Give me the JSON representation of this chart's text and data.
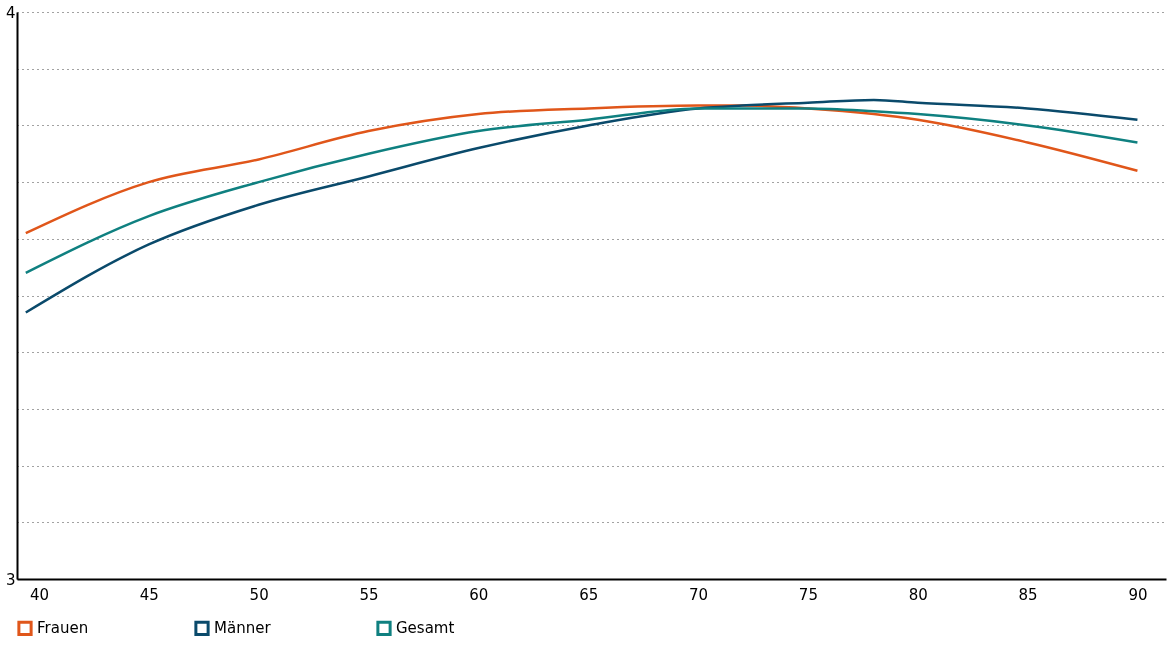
{
  "chart_data": {
    "type": "line",
    "x": [
      39.4,
      45,
      50,
      55,
      60,
      65,
      70,
      72,
      75,
      78,
      80,
      85,
      90
    ],
    "series": [
      {
        "name": "Frauen",
        "color": "#e0561a",
        "values": [
          3.61,
          3.7,
          3.74,
          3.79,
          3.82,
          3.83,
          3.835,
          3.835,
          3.83,
          3.82,
          3.81,
          3.77,
          3.72
        ]
      },
      {
        "name": "Männer",
        "color": "#0a4a6b",
        "values": [
          3.47,
          3.59,
          3.66,
          3.71,
          3.76,
          3.8,
          3.83,
          3.835,
          3.84,
          3.845,
          3.84,
          3.83,
          3.81
        ]
      },
      {
        "name": "Gesamt",
        "color": "#0f8080",
        "values": [
          3.54,
          3.64,
          3.7,
          3.75,
          3.79,
          3.81,
          3.83,
          3.83,
          3.83,
          3.825,
          3.82,
          3.8,
          3.77
        ]
      }
    ],
    "xlim": [
      39,
      91.3
    ],
    "xticks": [
      40,
      45,
      50,
      55,
      60,
      65,
      70,
      75,
      80,
      85,
      90
    ],
    "ylim": [
      3,
      4
    ],
    "yticks": [
      3,
      {
        "value": 3.1,
        "label": null
      },
      {
        "value": 3.2,
        "label": null
      },
      {
        "value": 3.3,
        "label": null
      },
      {
        "value": 3.4,
        "label": null
      },
      {
        "value": 3.5,
        "label": null
      },
      {
        "value": 3.6,
        "label": null
      },
      {
        "value": 3.7,
        "label": null
      },
      {
        "value": 3.8,
        "label": null
      },
      {
        "value": 3.9,
        "label": null
      },
      4
    ],
    "grid": "y",
    "legend": "bottom",
    "marker": "none",
    "line_style": "solid"
  }
}
